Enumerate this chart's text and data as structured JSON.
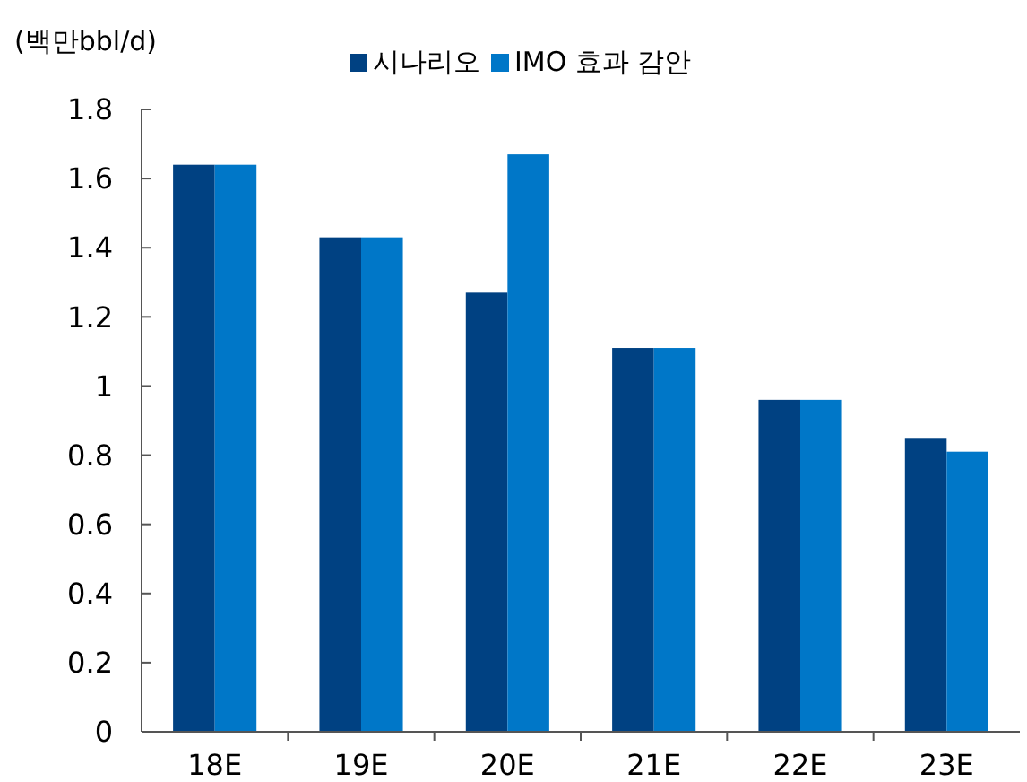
{
  "chart_data": {
    "type": "bar",
    "ylabel": "(백만bbl/d)",
    "categories": [
      "18E",
      "19E",
      "20E",
      "21E",
      "22E",
      "23E"
    ],
    "series": [
      {
        "name": "시나리오",
        "color": "#004182",
        "values": [
          1.64,
          1.43,
          1.27,
          1.11,
          0.96,
          0.85
        ]
      },
      {
        "name": "IMO 효과 감안",
        "color": "#0077c8",
        "values": [
          1.64,
          1.43,
          1.67,
          1.11,
          0.96,
          0.81
        ]
      }
    ],
    "ylim": [
      0,
      1.8
    ],
    "yticks": [
      0,
      0.2,
      0.4,
      0.6,
      0.8,
      1,
      1.2,
      1.4,
      1.6,
      1.8
    ],
    "grid": false,
    "legend": "top"
  }
}
